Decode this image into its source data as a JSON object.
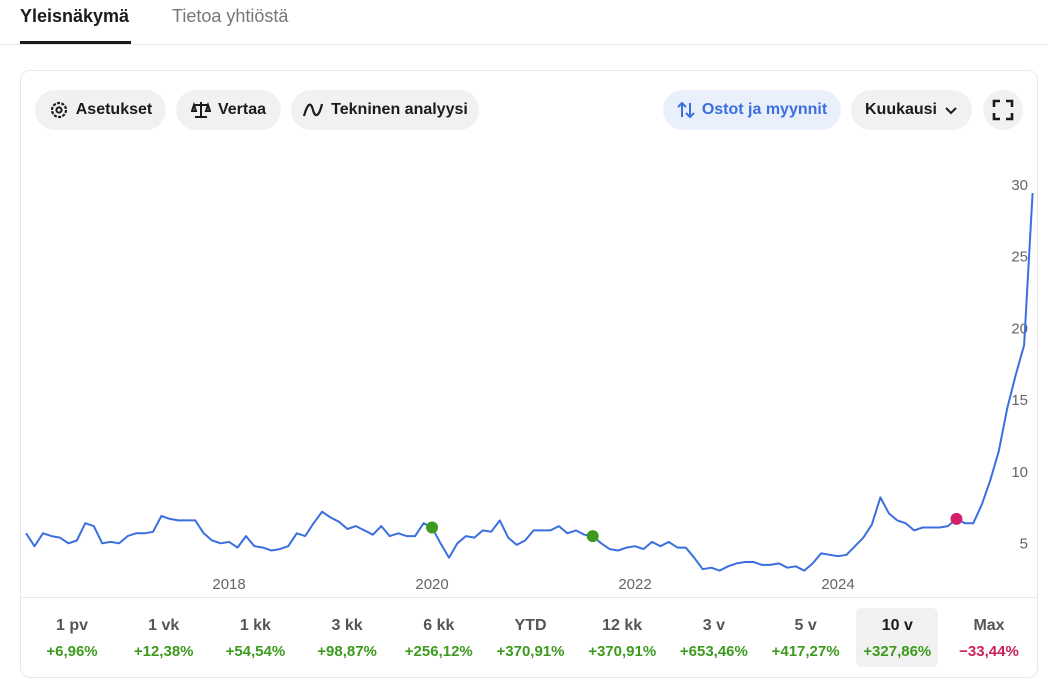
{
  "tabs": [
    "Yleisnäkymä",
    "Tietoa yhtiöstä"
  ],
  "toolbar": {
    "settings": "Asetukset",
    "compare": "Vertaa",
    "technical": "Tekninen analyysi",
    "trades": "Ostot ja myynnit",
    "interval": "Kuukausi"
  },
  "chart_data": {
    "type": "line",
    "color": "#3b6fe0",
    "x": [
      2016,
      2016.083,
      2016.167,
      2016.25,
      2016.333,
      2016.417,
      2016.5,
      2016.583,
      2016.667,
      2016.75,
      2016.833,
      2016.917,
      2017,
      2017.083,
      2017.167,
      2017.25,
      2017.333,
      2017.417,
      2017.5,
      2017.583,
      2017.667,
      2017.75,
      2017.833,
      2017.917,
      2018,
      2018.083,
      2018.167,
      2018.25,
      2018.333,
      2018.417,
      2018.5,
      2018.583,
      2018.667,
      2018.75,
      2018.833,
      2018.917,
      2019,
      2019.083,
      2019.167,
      2019.25,
      2019.333,
      2019.417,
      2019.5,
      2019.583,
      2019.667,
      2019.75,
      2019.833,
      2019.917,
      2020,
      2020.083,
      2020.167,
      2020.25,
      2020.333,
      2020.417,
      2020.5,
      2020.583,
      2020.667,
      2020.75,
      2020.833,
      2020.917,
      2021,
      2021.083,
      2021.167,
      2021.25,
      2021.333,
      2021.417,
      2021.5,
      2021.583,
      2021.667,
      2021.75,
      2021.833,
      2021.917,
      2022,
      2022.083,
      2022.167,
      2022.25,
      2022.333,
      2022.417,
      2022.5,
      2022.583,
      2022.667,
      2022.75,
      2022.833,
      2022.917,
      2023,
      2023.083,
      2023.167,
      2023.25,
      2023.333,
      2023.417,
      2023.5,
      2023.583,
      2023.667,
      2023.75,
      2023.833,
      2023.917,
      2024,
      2024.083,
      2024.167,
      2024.25,
      2024.333,
      2024.417,
      2024.5,
      2024.583,
      2024.667,
      2024.75,
      2024.833,
      2024.917,
      2025,
      2025.083,
      2025.167,
      2025.25,
      2025.333,
      2025.417,
      2025.5,
      2025.583,
      2025.667,
      2025.75,
      2025.833,
      2025.917
    ],
    "values": [
      5.8,
      4.9,
      5.8,
      5.6,
      5.5,
      5.1,
      5.3,
      6.5,
      6.3,
      5.1,
      5.2,
      5.1,
      5.6,
      5.8,
      5.8,
      5.9,
      7.0,
      6.8,
      6.7,
      6.7,
      6.7,
      5.8,
      5.3,
      5.1,
      5.2,
      4.8,
      5.6,
      4.9,
      4.8,
      4.6,
      4.7,
      4.9,
      5.8,
      5.6,
      6.5,
      7.3,
      6.9,
      6.6,
      6.1,
      6.3,
      6.0,
      5.7,
      6.3,
      5.6,
      5.8,
      5.6,
      5.6,
      6.5,
      6.2,
      5.1,
      4.1,
      5.1,
      5.6,
      5.5,
      6.0,
      5.9,
      6.7,
      5.5,
      5.0,
      5.3,
      6.0,
      6.0,
      6.0,
      6.3,
      5.8,
      6.0,
      5.7,
      5.6,
      5.1,
      4.7,
      4.6,
      4.8,
      4.9,
      4.7,
      5.2,
      4.9,
      5.2,
      4.8,
      4.8,
      4.1,
      3.3,
      3.4,
      3.2,
      3.5,
      3.7,
      3.8,
      3.8,
      3.6,
      3.6,
      3.7,
      3.4,
      3.5,
      3.2,
      3.7,
      4.4,
      4.3,
      4.2,
      4.3,
      4.9,
      5.5,
      6.4,
      8.3,
      7.2,
      6.7,
      6.5,
      6.0,
      6.2,
      6.2,
      6.2,
      6.3,
      6.8,
      6.5,
      6.5,
      7.8,
      9.5,
      11.5,
      14.5,
      16.8,
      18.9,
      29.5
    ],
    "markers": [
      {
        "x": 2020,
        "value": 6.2,
        "color": "#3d9a1e"
      },
      {
        "x": 2021.583,
        "value": 5.6,
        "color": "#3d9a1e"
      },
      {
        "x": 2025.167,
        "value": 6.8,
        "color": "#d3206a"
      }
    ],
    "xlim": [
      2015.94,
      2025.99
    ],
    "xticks": [
      2018,
      2020,
      2022,
      2024
    ],
    "ylim": [
      1.5,
      32.5
    ],
    "yticks": [
      5,
      10,
      15,
      20,
      25,
      30
    ],
    "grid": false
  },
  "periods": [
    {
      "label": "1 pv",
      "change": "+6,96%"
    },
    {
      "label": "1 vk",
      "change": "+12,38%"
    },
    {
      "label": "1 kk",
      "change": "+54,54%"
    },
    {
      "label": "3 kk",
      "change": "+98,87%"
    },
    {
      "label": "6 kk",
      "change": "+256,12%"
    },
    {
      "label": "YTD",
      "change": "+370,91%"
    },
    {
      "label": "12 kk",
      "change": "+370,91%"
    },
    {
      "label": "3 v",
      "change": "+653,46%"
    },
    {
      "label": "5 v",
      "change": "+417,27%"
    },
    {
      "label": "10 v",
      "change": "+327,86%"
    },
    {
      "label": "Max",
      "change": "−33,44%"
    }
  ]
}
